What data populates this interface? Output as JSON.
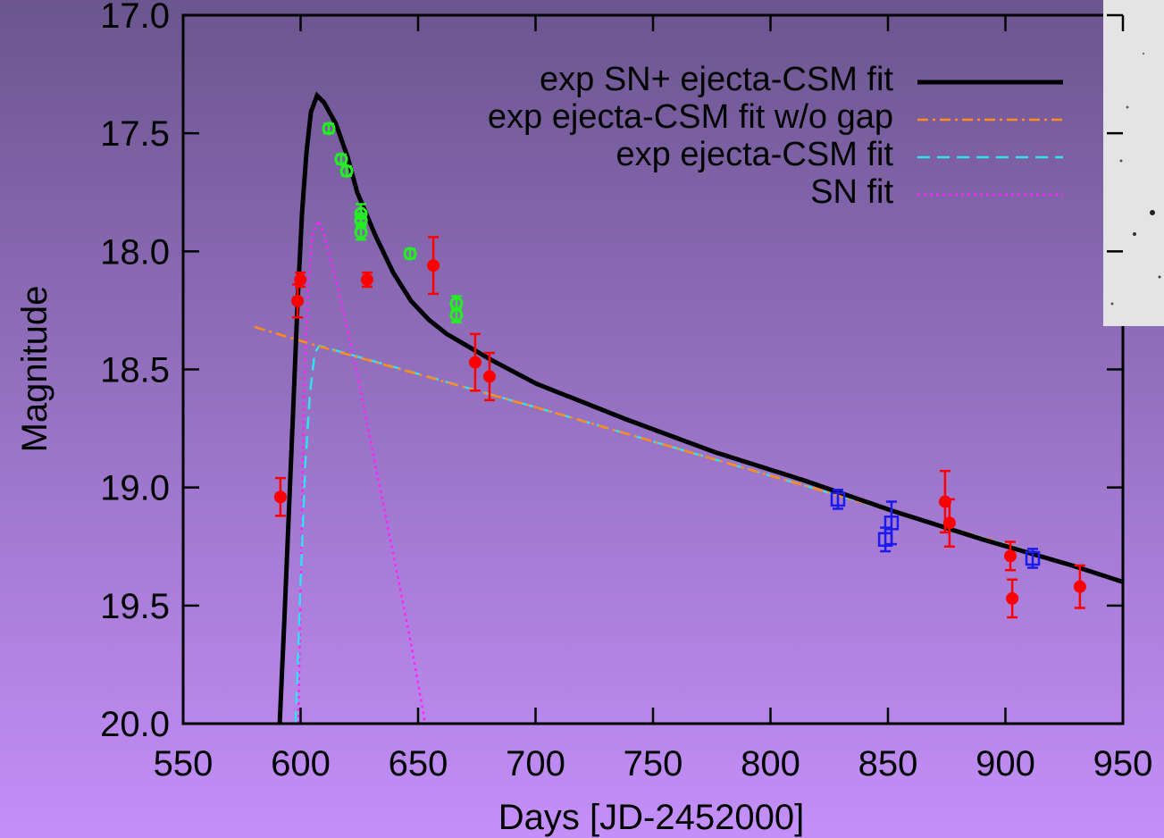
{
  "chart_data": {
    "type": "line",
    "x_label": "Days [JD-2452000]",
    "y_label": "Magnitude",
    "xlim": [
      550,
      950
    ],
    "xticks": [
      550,
      600,
      650,
      700,
      750,
      800,
      850,
      900,
      950
    ],
    "ylim": [
      17.0,
      20.0
    ],
    "y_inverted": true,
    "yticks": [
      {
        "value": 17.0,
        "label": "17.0"
      },
      17.5,
      {
        "value": 18.0,
        "label": "18.0"
      },
      18.5,
      {
        "value": 19.0,
        "label": "19.0"
      },
      19.5,
      {
        "value": 20.0,
        "label": "20.0"
      }
    ],
    "legend": "upper right",
    "series": [
      {
        "name": "exp SN+ ejecta-CSM fit",
        "type": "line",
        "line_style": "solid",
        "color": "#000000",
        "x": [
          591.1,
          593,
          594.9,
          596.8,
          598.7,
          600.6,
          602.5,
          604.4,
          607.0,
          610,
          615,
          620,
          624.1,
          631.7,
          639.4,
          647.0,
          654.6,
          662.2,
          681.2,
          700.2,
          738.2,
          776.2,
          814.3,
          852.3,
          890.3,
          928.3,
          950
        ],
        "values": [
          20.0,
          19.58,
          19.13,
          18.68,
          18.22,
          17.84,
          17.58,
          17.41,
          17.34,
          17.37,
          17.46,
          17.6,
          17.75,
          17.93,
          18.09,
          18.21,
          18.29,
          18.35,
          18.46,
          18.56,
          18.71,
          18.85,
          18.97,
          19.1,
          19.22,
          19.33,
          19.4
        ]
      },
      {
        "name": "exp ejecta-CSM fit w/o gap",
        "type": "line",
        "line_style": "dash-dot",
        "color": "#ff8c1a",
        "x": [
          580.4,
          607,
          700,
          800,
          900,
          950
        ],
        "values": [
          18.32,
          18.4,
          18.66,
          18.95,
          19.24,
          19.4
        ]
      },
      {
        "name": "exp ejecta-CSM fit",
        "type": "line",
        "line_style": "dashed",
        "color": "#33e0f0",
        "x": [
          597.9,
          600,
          602,
          604,
          606,
          608,
          700,
          800,
          900,
          950
        ],
        "values": [
          20.0,
          19.4,
          18.9,
          18.6,
          18.43,
          18.4,
          18.66,
          18.95,
          19.24,
          19.4
        ]
      },
      {
        "name": "SN fit",
        "type": "line",
        "line_style": "dotted",
        "color": "#ff22ff",
        "x": [
          599.0,
          599.8,
          601.3,
          603.2,
          605.1,
          607.8,
          610,
          616.5,
          624.1,
          631.7,
          639.4,
          647.0,
          653.0
        ],
        "values": [
          20.0,
          19.58,
          18.64,
          18.15,
          17.92,
          17.87,
          17.93,
          18.18,
          18.52,
          18.9,
          19.28,
          19.66,
          20.0
        ]
      },
      {
        "type": "scatter",
        "marker": "circle",
        "color": "#ff0000",
        "x": [
          591.4,
          598.7,
          599.9,
          628.3,
          656.5,
          674.3,
          680.4,
          874.3,
          876.2,
          902.1,
          902.9,
          931.7
        ],
        "values": [
          19.04,
          18.21,
          18.12,
          18.12,
          18.06,
          18.47,
          18.53,
          19.06,
          19.15,
          19.29,
          19.47,
          19.42
        ],
        "errors": [
          0.08,
          0.07,
          0.03,
          0.03,
          0.12,
          0.12,
          0.1,
          0.13,
          0.1,
          0.06,
          0.08,
          0.09
        ]
      },
      {
        "type": "scatter",
        "marker": "circle-open",
        "color": "#22ee22",
        "x": [
          612.0,
          617.3,
          619.6,
          625.7,
          625.7,
          625.7,
          646.6,
          666.3,
          666.3
        ],
        "values": [
          17.48,
          17.61,
          17.66,
          17.84,
          17.87,
          17.92,
          18.01,
          18.22,
          18.27
        ],
        "errors": [
          0.02,
          0.02,
          0.02,
          0.04,
          0.03,
          0.03,
          0.02,
          0.03,
          0.03
        ]
      },
      {
        "type": "scatter",
        "marker": "square-open",
        "color": "#1a1aee",
        "x": [
          828.7,
          848.9,
          851.5,
          911.6
        ],
        "values": [
          19.05,
          19.22,
          19.15,
          19.3
        ],
        "errors": [
          0.04,
          0.05,
          0.09,
          0.04
        ]
      }
    ]
  }
}
